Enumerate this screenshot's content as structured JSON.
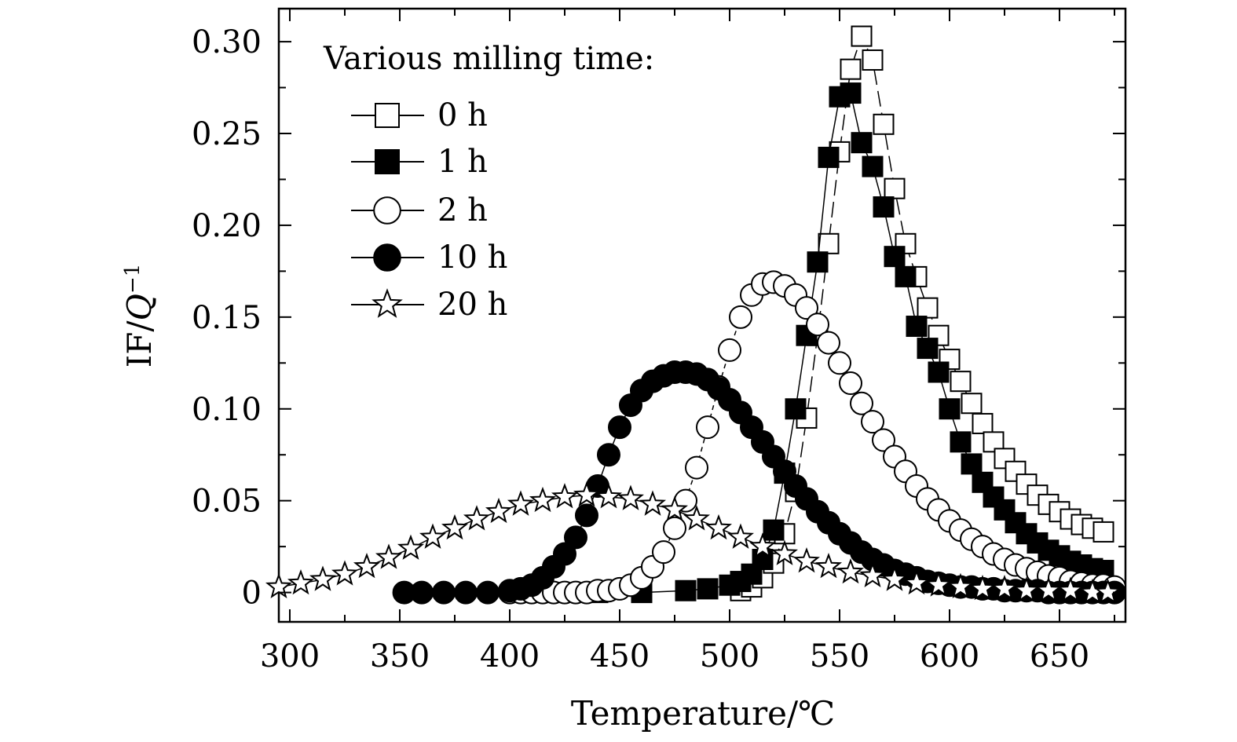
{
  "chart_data": {
    "type": "scatter",
    "title": "",
    "xlabel": "Temperature/℃",
    "ylabel_parts": [
      "IF/",
      "Q",
      "−1"
    ],
    "xlim": [
      295,
      680
    ],
    "ylim": [
      -0.016,
      0.318
    ],
    "xticks": [
      300,
      350,
      400,
      450,
      500,
      550,
      600,
      650
    ],
    "xtick_labels": [
      "300",
      "350",
      "400",
      "450",
      "500",
      "550",
      "600",
      "650"
    ],
    "yticks": [
      0,
      0.05,
      0.1,
      0.15,
      0.2,
      0.25,
      0.3
    ],
    "ytick_labels": [
      "0",
      "0.05",
      "0.10",
      "0.15",
      "0.20",
      "0.25",
      "0.30"
    ],
    "grid": false,
    "legend_title": "Various milling time:",
    "legend_position": "top-left",
    "series": [
      {
        "name": "0 h",
        "marker": "square-open",
        "x": [
          505,
          510,
          515,
          520,
          525,
          530,
          535,
          540,
          545,
          550,
          555,
          560,
          565,
          570,
          575,
          580,
          585,
          590,
          595,
          600,
          605,
          610,
          615,
          620,
          625,
          630,
          635,
          640,
          645,
          650,
          655,
          660,
          665,
          670
        ],
        "y": [
          0.001,
          0.003,
          0.008,
          0.016,
          0.032,
          0.055,
          0.095,
          0.14,
          0.19,
          0.24,
          0.285,
          0.303,
          0.29,
          0.255,
          0.22,
          0.19,
          0.172,
          0.155,
          0.14,
          0.127,
          0.115,
          0.103,
          0.092,
          0.082,
          0.073,
          0.066,
          0.059,
          0.053,
          0.048,
          0.044,
          0.04,
          0.037,
          0.035,
          0.033
        ]
      },
      {
        "name": "1 h",
        "marker": "square-filled",
        "x": [
          420,
          440,
          460,
          480,
          490,
          500,
          505,
          510,
          515,
          520,
          525,
          530,
          535,
          540,
          545,
          550,
          555,
          560,
          565,
          570,
          575,
          580,
          585,
          590,
          595,
          600,
          605,
          610,
          615,
          620,
          625,
          630,
          635,
          640,
          645,
          650,
          655,
          660,
          665,
          670
        ],
        "y": [
          0.0,
          0.0,
          0.0,
          0.001,
          0.002,
          0.004,
          0.006,
          0.01,
          0.018,
          0.034,
          0.065,
          0.1,
          0.14,
          0.18,
          0.237,
          0.27,
          0.272,
          0.245,
          0.232,
          0.21,
          0.183,
          0.172,
          0.145,
          0.133,
          0.12,
          0.1,
          0.082,
          0.07,
          0.06,
          0.052,
          0.045,
          0.038,
          0.032,
          0.027,
          0.023,
          0.02,
          0.017,
          0.015,
          0.013,
          0.012
        ]
      },
      {
        "name": "2 h",
        "marker": "circle-open",
        "x": [
          400,
          405,
          410,
          415,
          420,
          425,
          430,
          435,
          440,
          445,
          450,
          455,
          460,
          465,
          470,
          475,
          480,
          485,
          490,
          495,
          500,
          505,
          510,
          515,
          520,
          525,
          530,
          535,
          540,
          545,
          550,
          555,
          560,
          565,
          570,
          575,
          580,
          585,
          590,
          595,
          600,
          605,
          610,
          615,
          620,
          625,
          630,
          635,
          640,
          645,
          650,
          655,
          660,
          665,
          670,
          675
        ],
        "y": [
          0.0,
          0.0,
          0.0,
          0.0,
          0.0,
          0.0,
          0.0,
          0.0,
          0.001,
          0.001,
          0.002,
          0.004,
          0.008,
          0.014,
          0.022,
          0.035,
          0.05,
          0.068,
          0.09,
          0.112,
          0.132,
          0.15,
          0.162,
          0.168,
          0.169,
          0.167,
          0.162,
          0.155,
          0.146,
          0.136,
          0.125,
          0.114,
          0.103,
          0.093,
          0.083,
          0.074,
          0.066,
          0.058,
          0.051,
          0.045,
          0.039,
          0.034,
          0.029,
          0.025,
          0.021,
          0.018,
          0.015,
          0.013,
          0.011,
          0.009,
          0.008,
          0.006,
          0.005,
          0.004,
          0.004,
          0.003
        ]
      },
      {
        "name": "10 h",
        "marker": "circle-filled",
        "x": [
          352,
          360,
          370,
          380,
          390,
          400,
          405,
          410,
          415,
          420,
          425,
          430,
          435,
          440,
          445,
          450,
          455,
          460,
          465,
          470,
          475,
          480,
          485,
          490,
          495,
          500,
          505,
          510,
          515,
          520,
          525,
          530,
          535,
          540,
          545,
          550,
          555,
          560,
          565,
          570,
          575,
          580,
          585,
          590,
          595,
          600,
          605,
          610,
          615,
          620,
          625,
          630,
          635,
          640,
          645,
          650,
          655,
          660,
          665,
          670,
          675
        ],
        "y": [
          0.0,
          0.0,
          0.0,
          0.0,
          0.0,
          0.001,
          0.002,
          0.004,
          0.008,
          0.014,
          0.021,
          0.03,
          0.042,
          0.058,
          0.075,
          0.09,
          0.102,
          0.11,
          0.115,
          0.118,
          0.12,
          0.12,
          0.119,
          0.116,
          0.111,
          0.105,
          0.098,
          0.09,
          0.082,
          0.074,
          0.066,
          0.058,
          0.051,
          0.044,
          0.038,
          0.032,
          0.027,
          0.022,
          0.018,
          0.015,
          0.012,
          0.01,
          0.008,
          0.006,
          0.005,
          0.004,
          0.003,
          0.003,
          0.002,
          0.002,
          0.001,
          0.001,
          0.001,
          0.001,
          0.0,
          0.0,
          0.0,
          0.0,
          0.0,
          0.0,
          0.0
        ]
      },
      {
        "name": "20 h",
        "marker": "star-open",
        "x": [
          295,
          305,
          315,
          325,
          335,
          345,
          355,
          365,
          375,
          385,
          395,
          405,
          415,
          425,
          435,
          445,
          455,
          465,
          475,
          485,
          495,
          505,
          515,
          525,
          535,
          545,
          555,
          565,
          575,
          585,
          595,
          605,
          615,
          625,
          635,
          645,
          655,
          665,
          672
        ],
        "y": [
          0.003,
          0.005,
          0.007,
          0.01,
          0.014,
          0.019,
          0.024,
          0.03,
          0.035,
          0.04,
          0.044,
          0.048,
          0.05,
          0.052,
          0.053,
          0.052,
          0.051,
          0.048,
          0.045,
          0.04,
          0.035,
          0.03,
          0.025,
          0.021,
          0.017,
          0.014,
          0.011,
          0.009,
          0.007,
          0.005,
          0.004,
          0.003,
          0.002,
          0.002,
          0.001,
          0.001,
          0.001,
          0.0,
          0.0
        ]
      }
    ]
  }
}
